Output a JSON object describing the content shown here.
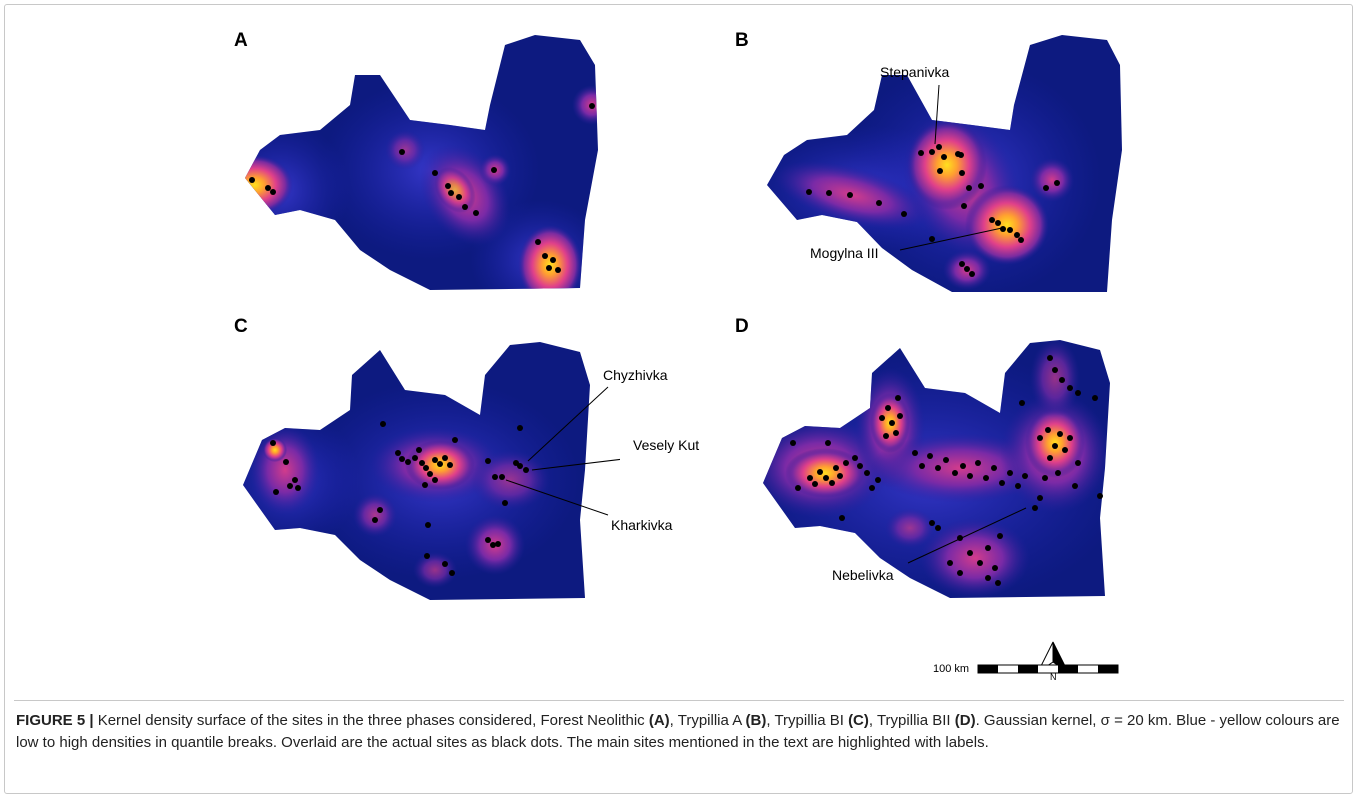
{
  "panels": [
    {
      "letter": "A"
    },
    {
      "letter": "B",
      "labels": [
        {
          "text": "Stepanivka"
        },
        {
          "text": "Mogylna III"
        }
      ]
    },
    {
      "letter": "C",
      "labels": [
        {
          "text": "Chyzhivka"
        },
        {
          "text": "Vesely Kut"
        },
        {
          "text": "Kharkivka"
        }
      ]
    },
    {
      "letter": "D",
      "labels": [
        {
          "text": "Nebelivka"
        }
      ]
    }
  ],
  "north_arrow": {
    "label": "N"
  },
  "scale_bar": {
    "label": "100 km"
  },
  "colors": {
    "low_density": "#0d1a80",
    "mid_density": "#cf3c9c",
    "high_density": "#ffd21e",
    "sites": "#000000"
  },
  "caption": {
    "figure_number": "FIGURE 5 |",
    "part1": " Kernel density surface of the sites in the three phases considered, Forest Neolithic ",
    "a": "(A)",
    "part2": ", Trypillia A ",
    "b": "(B)",
    "part3": ", Trypillia BI ",
    "c": "(C)",
    "part4": ", Trypillia BII ",
    "d": "(D)",
    "part5": ". Gaussian kernel, σ = 20 km. Blue - yellow colours are low to high densities in quantile breaks. Overlaid are the actual sites as black dots. The main sites mentioned in the text are highlighted with labels."
  }
}
